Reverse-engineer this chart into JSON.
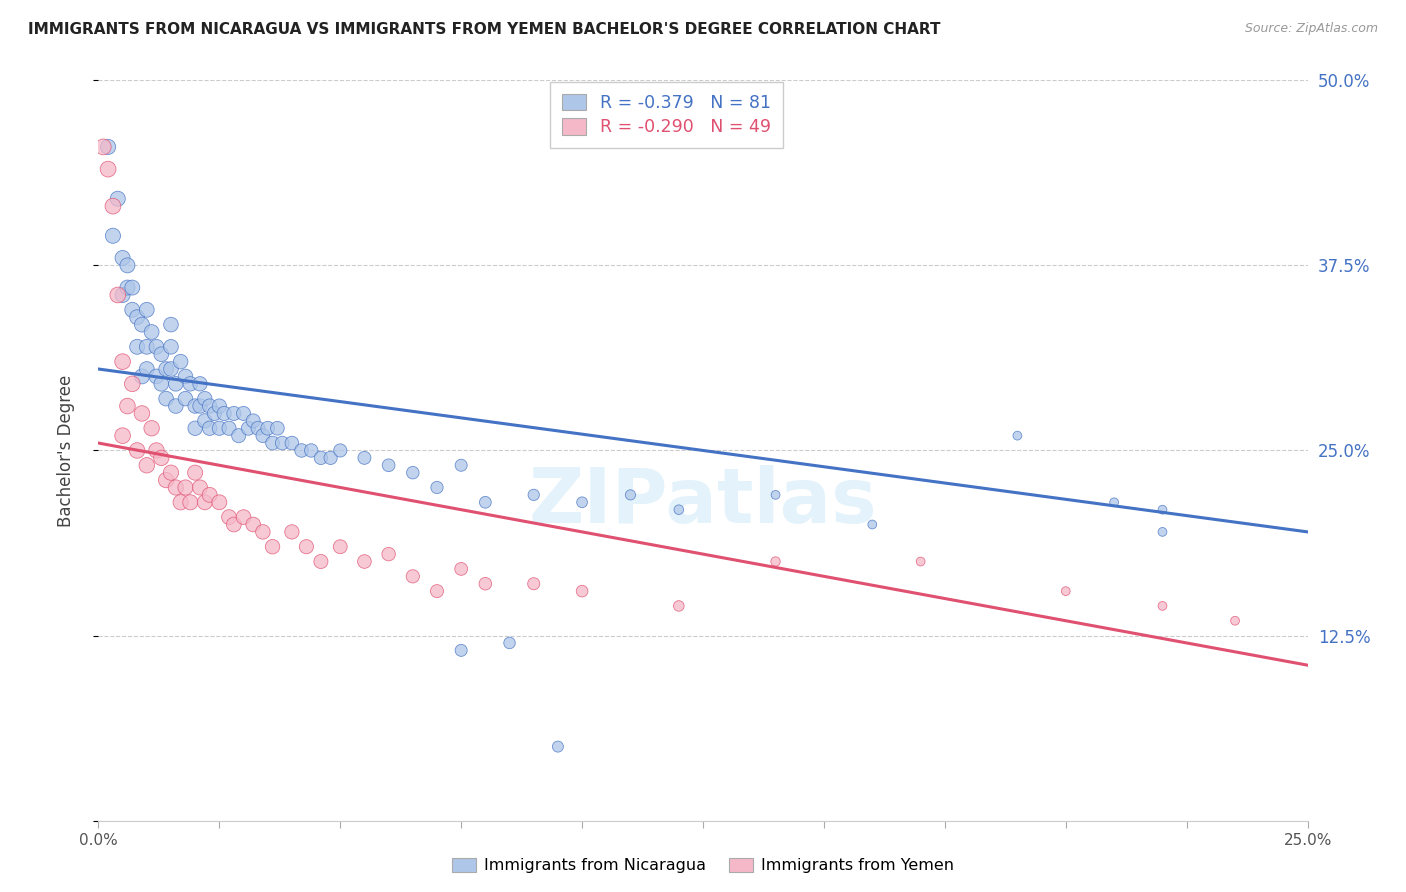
{
  "title": "IMMIGRANTS FROM NICARAGUA VS IMMIGRANTS FROM YEMEN BACHELOR'S DEGREE CORRELATION CHART",
  "source": "Source: ZipAtlas.com",
  "ylabel": "Bachelor's Degree",
  "legend_label1": "Immigrants from Nicaragua",
  "legend_label2": "Immigrants from Yemen",
  "r1": -0.379,
  "n1": 81,
  "r2": -0.29,
  "n2": 49,
  "xmin": 0.0,
  "xmax": 0.25,
  "ymin": 0.0,
  "ymax": 0.5,
  "yticks": [
    0.0,
    0.125,
    0.25,
    0.375,
    0.5
  ],
  "ytick_labels": [
    "",
    "12.5%",
    "25.0%",
    "37.5%",
    "50.0%"
  ],
  "xticks": [
    0.0,
    0.025,
    0.05,
    0.075,
    0.1,
    0.125,
    0.15,
    0.175,
    0.2,
    0.225,
    0.25
  ],
  "xtick_labels": [
    "0.0%",
    "",
    "",
    "",
    "",
    "",
    "",
    "",
    "",
    "",
    "25.0%"
  ],
  "color_blue": "#aec6e8",
  "color_pink": "#f5b8c8",
  "line_blue": "#4472c4",
  "line_pink": "#e05070",
  "background": "#ffffff",
  "watermark": "ZIPatlas",
  "blue_line_y0": 0.305,
  "blue_line_y1": 0.195,
  "pink_line_y0": 0.255,
  "pink_line_y1": 0.105,
  "blue_scatter_x": [
    0.002,
    0.003,
    0.004,
    0.005,
    0.005,
    0.006,
    0.006,
    0.007,
    0.007,
    0.008,
    0.008,
    0.009,
    0.009,
    0.01,
    0.01,
    0.01,
    0.011,
    0.012,
    0.012,
    0.013,
    0.013,
    0.014,
    0.014,
    0.015,
    0.015,
    0.015,
    0.016,
    0.016,
    0.017,
    0.018,
    0.018,
    0.019,
    0.02,
    0.02,
    0.021,
    0.021,
    0.022,
    0.022,
    0.023,
    0.023,
    0.024,
    0.025,
    0.025,
    0.026,
    0.027,
    0.028,
    0.029,
    0.03,
    0.031,
    0.032,
    0.033,
    0.034,
    0.035,
    0.036,
    0.037,
    0.038,
    0.04,
    0.042,
    0.044,
    0.046,
    0.048,
    0.05,
    0.055,
    0.06,
    0.065,
    0.07,
    0.075,
    0.08,
    0.09,
    0.1,
    0.11,
    0.12,
    0.14,
    0.16,
    0.19,
    0.21,
    0.22,
    0.22,
    0.075,
    0.085,
    0.095
  ],
  "blue_scatter_y": [
    0.455,
    0.395,
    0.42,
    0.38,
    0.355,
    0.375,
    0.36,
    0.36,
    0.345,
    0.34,
    0.32,
    0.335,
    0.3,
    0.345,
    0.32,
    0.305,
    0.33,
    0.32,
    0.3,
    0.315,
    0.295,
    0.305,
    0.285,
    0.335,
    0.32,
    0.305,
    0.295,
    0.28,
    0.31,
    0.3,
    0.285,
    0.295,
    0.28,
    0.265,
    0.295,
    0.28,
    0.285,
    0.27,
    0.28,
    0.265,
    0.275,
    0.28,
    0.265,
    0.275,
    0.265,
    0.275,
    0.26,
    0.275,
    0.265,
    0.27,
    0.265,
    0.26,
    0.265,
    0.255,
    0.265,
    0.255,
    0.255,
    0.25,
    0.25,
    0.245,
    0.245,
    0.25,
    0.245,
    0.24,
    0.235,
    0.225,
    0.24,
    0.215,
    0.22,
    0.215,
    0.22,
    0.21,
    0.22,
    0.2,
    0.26,
    0.215,
    0.195,
    0.21,
    0.115,
    0.12,
    0.05
  ],
  "pink_scatter_x": [
    0.001,
    0.002,
    0.003,
    0.004,
    0.005,
    0.005,
    0.006,
    0.007,
    0.008,
    0.009,
    0.01,
    0.011,
    0.012,
    0.013,
    0.014,
    0.015,
    0.016,
    0.017,
    0.018,
    0.019,
    0.02,
    0.021,
    0.022,
    0.023,
    0.025,
    0.027,
    0.028,
    0.03,
    0.032,
    0.034,
    0.036,
    0.04,
    0.043,
    0.046,
    0.05,
    0.055,
    0.06,
    0.065,
    0.07,
    0.075,
    0.08,
    0.09,
    0.1,
    0.12,
    0.14,
    0.17,
    0.2,
    0.22,
    0.235
  ],
  "pink_scatter_y": [
    0.455,
    0.44,
    0.415,
    0.355,
    0.31,
    0.26,
    0.28,
    0.295,
    0.25,
    0.275,
    0.24,
    0.265,
    0.25,
    0.245,
    0.23,
    0.235,
    0.225,
    0.215,
    0.225,
    0.215,
    0.235,
    0.225,
    0.215,
    0.22,
    0.215,
    0.205,
    0.2,
    0.205,
    0.2,
    0.195,
    0.185,
    0.195,
    0.185,
    0.175,
    0.185,
    0.175,
    0.18,
    0.165,
    0.155,
    0.17,
    0.16,
    0.16,
    0.155,
    0.145,
    0.175,
    0.175,
    0.155,
    0.145,
    0.135
  ]
}
